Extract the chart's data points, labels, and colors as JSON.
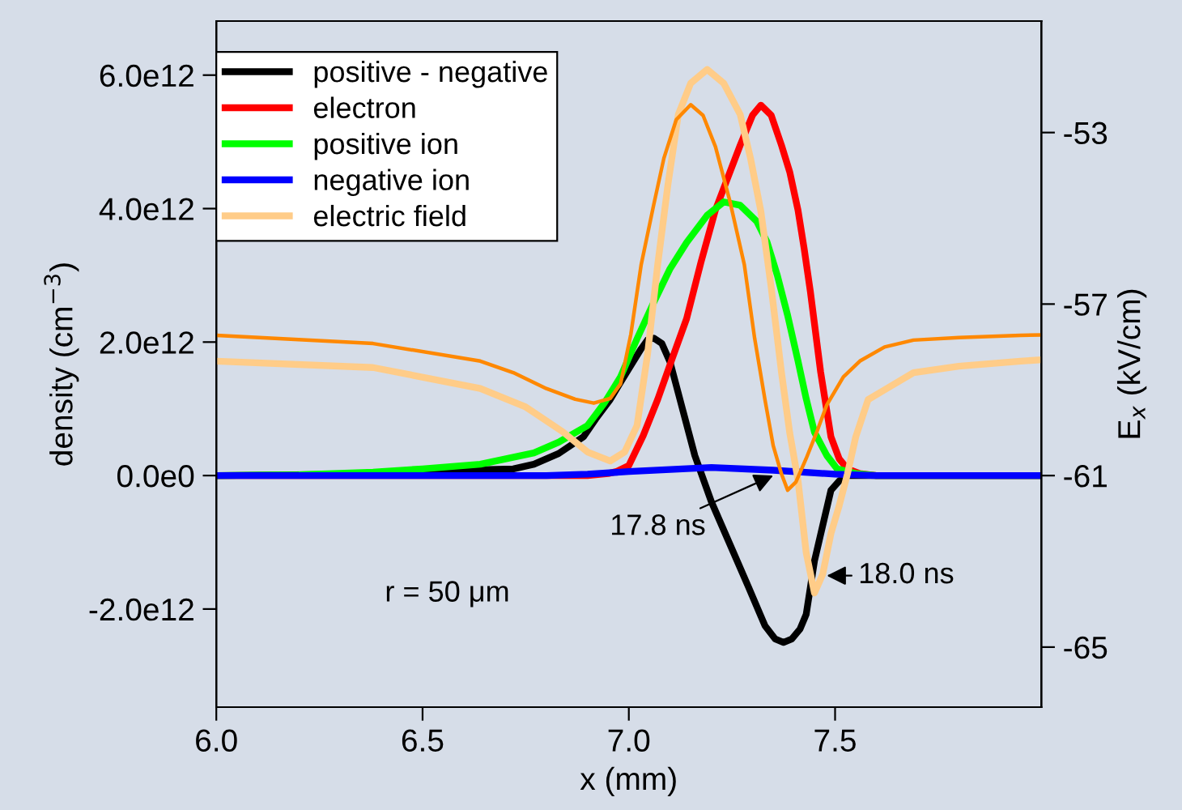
{
  "chart_data": {
    "type": "line",
    "xlabel": "x (mm)",
    "ylabel": "density (cm$^{−3}$)",
    "y2label": "E$_{x}$ (kV/cm)",
    "xlim": [
      6.0,
      8.0
    ],
    "xticks": [
      {
        "value": 6.0,
        "label": "6.0"
      },
      {
        "value": 6.5,
        "label": "6.5"
      },
      {
        "value": 7.0,
        "label": "7.0"
      },
      {
        "value": 7.5,
        "label": "7.5"
      }
    ],
    "ylim": [
      -3470000000000.0,
      6810000000000.0
    ],
    "yticks": [
      {
        "value": -2000000000000.0,
        "label": "-2.0e12"
      },
      {
        "value": 0,
        "label": "0.0e0"
      },
      {
        "value": 2000000000000.0,
        "label": "2.0e12"
      },
      {
        "value": 4000000000000.0,
        "label": "4.0e12"
      },
      {
        "value": 6000000000000.0,
        "label": "6.0e12"
      }
    ],
    "y2lim": [
      -66.4,
      -50.4
    ],
    "y2ticks": [
      -65,
      -61,
      -57,
      -53
    ],
    "grid": false,
    "legend": "top left",
    "marker": "none",
    "line_style": "solid",
    "annotations": [
      {
        "text": "17.8 ns",
        "x": 7.35,
        "y": 0
      },
      {
        "text": "18.0 ns",
        "x": 7.48,
        "y": -1500000000000.0
      },
      "r = 50 μm"
    ],
    "series": [
      {
        "name": "positive - negative",
        "color": "#000000",
        "x": [
          6.0,
          6.5,
          6.6,
          6.72,
          6.77,
          6.83,
          6.89,
          6.92,
          6.955,
          6.98,
          7.0,
          7.03,
          7.045,
          7.06,
          7.08,
          7.1,
          7.13,
          7.16,
          7.2,
          7.25,
          7.29,
          7.33,
          7.355,
          7.375,
          7.395,
          7.415,
          7.43,
          7.45,
          7.49,
          7.51,
          7.53,
          7.6,
          8.0
        ],
        "values": [
          0,
          30000000000.0,
          80000000000.0,
          100000000000.0,
          170000000000.0,
          330000000000.0,
          580000000000.0,
          850000000000.0,
          1140000000000.0,
          1400000000000.0,
          1600000000000.0,
          1900000000000.0,
          2030000000000.0,
          2060000000000.0,
          1980000000000.0,
          1700000000000.0,
          1000000000000.0,
          300000000000.0,
          -390000000000.0,
          -1100000000000.0,
          -1670000000000.0,
          -2250000000000.0,
          -2450000000000.0,
          -2500000000000.0,
          -2450000000000.0,
          -2300000000000.0,
          -2080000000000.0,
          -1280000000000.0,
          -220000000000.0,
          -80000000000.0,
          0,
          0,
          0
        ]
      },
      {
        "name": "electron",
        "color": "#ff0000",
        "x": [
          6.0,
          6.9,
          6.95,
          6.97,
          7.0,
          7.035,
          7.07,
          7.105,
          7.14,
          7.175,
          7.21,
          7.27,
          7.3,
          7.32,
          7.345,
          7.37,
          7.39,
          7.41,
          7.425,
          7.44,
          7.465,
          7.49,
          7.51,
          7.53,
          7.56,
          7.6,
          8.0
        ],
        "values": [
          0,
          0,
          30000000000.0,
          60000000000.0,
          150000000000.0,
          600000000000.0,
          1140000000000.0,
          1750000000000.0,
          2350000000000.0,
          3200000000000.0,
          3980000000000.0,
          4950000000000.0,
          5400000000000.0,
          5550000000000.0,
          5400000000000.0,
          4950000000000.0,
          4550000000000.0,
          3980000000000.0,
          3400000000000.0,
          2760000000000.0,
          1550000000000.0,
          580000000000.0,
          250000000000.0,
          100000000000.0,
          30000000000.0,
          0,
          0
        ]
      },
      {
        "name": "positive ion",
        "color": "#00ff00",
        "x": [
          6.0,
          6.2,
          6.38,
          6.5,
          6.64,
          6.77,
          6.83,
          6.9,
          6.94,
          6.98,
          7.02,
          7.06,
          7.1,
          7.14,
          7.19,
          7.23,
          7.27,
          7.31,
          7.335,
          7.36,
          7.385,
          7.41,
          7.43,
          7.45,
          7.48,
          7.505,
          7.55,
          7.6,
          8.0
        ],
        "values": [
          0,
          10000000000.0,
          50000000000.0,
          100000000000.0,
          170000000000.0,
          340000000000.0,
          500000000000.0,
          750000000000.0,
          1080000000000.0,
          1480000000000.0,
          2050000000000.0,
          2590000000000.0,
          3100000000000.0,
          3490000000000.0,
          3900000000000.0,
          4100000000000.0,
          4050000000000.0,
          3810000000000.0,
          3500000000000.0,
          3000000000000.0,
          2400000000000.0,
          1720000000000.0,
          1150000000000.0,
          650000000000.0,
          300000000000.0,
          100000000000.0,
          30000000000.0,
          0,
          0
        ]
      },
      {
        "name": "negative ion",
        "color": "#0000ff",
        "x": [
          6.0,
          6.8,
          6.9,
          7.0,
          7.2,
          7.35,
          7.5,
          7.6,
          8.0
        ],
        "values": [
          0,
          0,
          20000000000.0,
          60000000000.0,
          120000000000.0,
          80000000000.0,
          20000000000.0,
          0,
          0
        ]
      },
      {
        "name": "electric field",
        "color": "#ffcc88",
        "axis": "y2",
        "x": [
          6.0,
          6.38,
          6.64,
          6.75,
          6.84,
          6.9,
          6.955,
          6.99,
          7.02,
          7.045,
          7.07,
          7.095,
          7.12,
          7.15,
          7.19,
          7.23,
          7.27,
          7.295,
          7.32,
          7.345,
          7.37,
          7.39,
          7.41,
          7.43,
          7.45,
          7.47,
          7.49,
          7.51,
          7.53,
          7.55,
          7.58,
          7.62,
          7.69,
          7.8,
          7.95,
          8.0
        ],
        "values": [
          -58.33,
          -58.48,
          -58.97,
          -59.4,
          -59.98,
          -60.45,
          -60.66,
          -60.45,
          -59.83,
          -58.2,
          -56.08,
          -54.2,
          -52.58,
          -51.85,
          -51.53,
          -51.85,
          -52.58,
          -53.6,
          -54.83,
          -56.6,
          -58.59,
          -60.0,
          -61.1,
          -62.8,
          -63.74,
          -63.3,
          -62.35,
          -61.7,
          -60.96,
          -60.1,
          -59.23,
          -59.0,
          -58.6,
          -58.45,
          -58.33,
          -58.3
        ]
      },
      {
        "color": "#ff8800",
        "axis": "y2",
        "x": [
          6.0,
          6.38,
          6.64,
          6.72,
          6.8,
          6.87,
          6.915,
          6.955,
          6.98,
          7.005,
          7.03,
          7.06,
          7.085,
          7.115,
          7.15,
          7.18,
          7.21,
          7.245,
          7.28,
          7.305,
          7.33,
          7.35,
          7.37,
          7.385,
          7.405,
          7.43,
          7.455,
          7.48,
          7.52,
          7.56,
          7.62,
          7.69,
          7.8,
          7.95,
          8.0
        ],
        "values": [
          -57.73,
          -57.92,
          -58.33,
          -58.6,
          -58.97,
          -59.22,
          -59.31,
          -59.2,
          -58.86,
          -57.7,
          -56.08,
          -54.7,
          -53.6,
          -52.7,
          -52.35,
          -52.6,
          -53.33,
          -54.6,
          -56.08,
          -57.8,
          -59.23,
          -60.3,
          -60.96,
          -61.34,
          -61.15,
          -60.6,
          -60.0,
          -59.35,
          -58.7,
          -58.33,
          -58.0,
          -57.84,
          -57.78,
          -57.73,
          -57.72
        ]
      }
    ]
  }
}
